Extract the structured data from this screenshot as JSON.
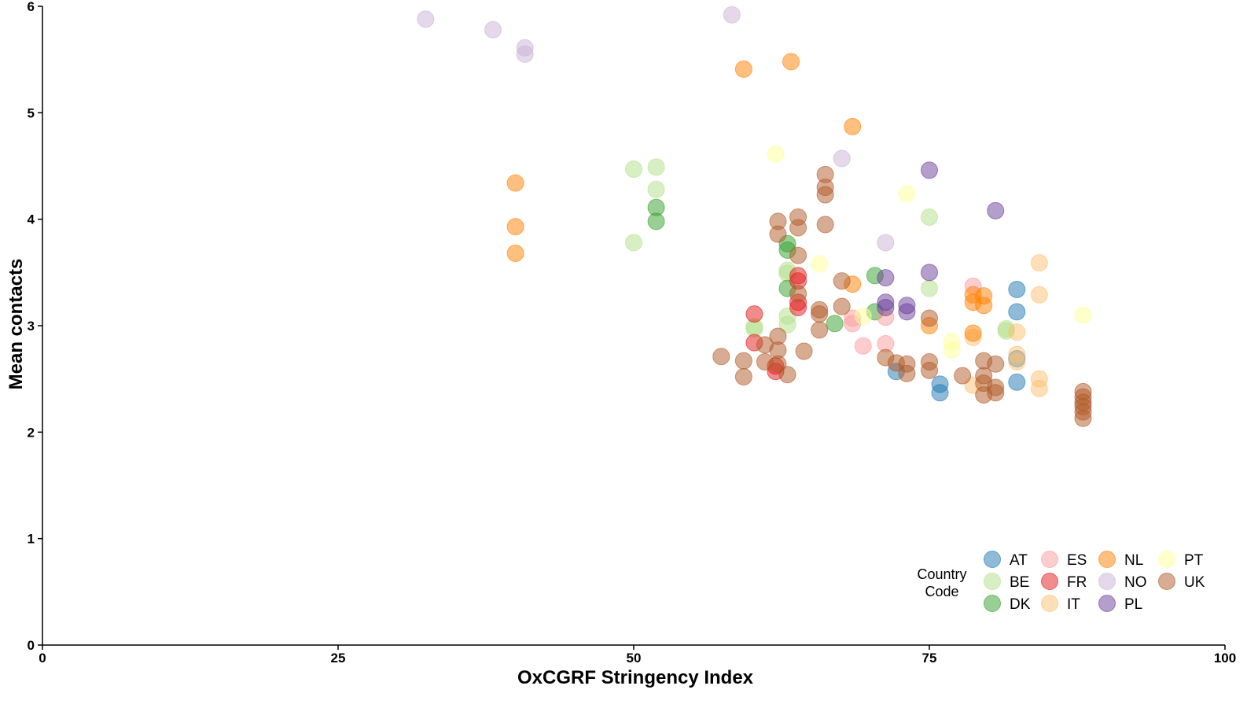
{
  "chart_data": {
    "type": "scatter",
    "title": "",
    "xlabel": "OxCGRF Stringency Index",
    "ylabel": "Mean contacts",
    "xlim": [
      0,
      100
    ],
    "ylim": [
      0,
      6
    ],
    "xticks": [
      0,
      25,
      50,
      75,
      100
    ],
    "yticks": [
      0,
      1,
      2,
      3,
      4,
      5,
      6
    ],
    "grid": false,
    "legend": {
      "title_lines": [
        "Country",
        "Code"
      ],
      "position": "bottom-right",
      "columns": [
        [
          "AT",
          "BE",
          "DK"
        ],
        [
          "ES",
          "FR",
          "IT"
        ],
        [
          "NL",
          "NO",
          "PL"
        ],
        [
          "PT",
          "UK"
        ]
      ]
    },
    "colors": {
      "AT": "#1f78b4",
      "BE": "#b2df8a",
      "DK": "#33a02c",
      "ES": "#fb9a99",
      "FR": "#e31a1c",
      "IT": "#fdbf6f",
      "NL": "#ff7f00",
      "NO": "#cab2d6",
      "PL": "#6a3d9a",
      "PT": "#ffff99",
      "UK": "#b15928"
    },
    "series": [
      {
        "name": "AT",
        "points": [
          [
            82.4,
            3.34
          ],
          [
            82.4,
            3.13
          ],
          [
            82.4,
            2.69
          ],
          [
            82.4,
            2.47
          ],
          [
            75.9,
            2.45
          ],
          [
            75.9,
            2.37
          ],
          [
            72.2,
            2.57
          ]
        ]
      },
      {
        "name": "BE",
        "points": [
          [
            50,
            4.47
          ],
          [
            51.9,
            4.49
          ],
          [
            51.9,
            4.28
          ],
          [
            50,
            3.78
          ],
          [
            63,
            3.52
          ],
          [
            63,
            3.49
          ],
          [
            60.2,
            2.99
          ],
          [
            60.2,
            2.97
          ],
          [
            63,
            3.09
          ],
          [
            63,
            3.01
          ],
          [
            75,
            4.02
          ],
          [
            75,
            3.35
          ],
          [
            81.5,
            2.97
          ],
          [
            81.5,
            2.95
          ]
        ]
      },
      {
        "name": "DK",
        "points": [
          [
            51.9,
            4.11
          ],
          [
            51.9,
            3.98
          ],
          [
            63,
            3.77
          ],
          [
            63,
            3.71
          ],
          [
            63,
            3.35
          ],
          [
            67,
            3.02
          ],
          [
            70.4,
            3.47
          ],
          [
            70.4,
            3.13
          ]
        ]
      },
      {
        "name": "ES",
        "points": [
          [
            68.5,
            3.07
          ],
          [
            68.5,
            3.02
          ],
          [
            69.4,
            2.81
          ],
          [
            71.3,
            2.83
          ],
          [
            71.3,
            3.08
          ],
          [
            78.7,
            3.37
          ]
        ]
      },
      {
        "name": "FR",
        "points": [
          [
            60.2,
            3.11
          ],
          [
            60.2,
            2.84
          ],
          [
            63.9,
            3.47
          ],
          [
            63.9,
            3.42
          ],
          [
            63.9,
            3.22
          ],
          [
            63.9,
            3.17
          ],
          [
            62,
            2.62
          ],
          [
            62,
            2.57
          ]
        ]
      },
      {
        "name": "IT",
        "points": [
          [
            78.7,
            2.89
          ],
          [
            78.7,
            2.44
          ],
          [
            82.4,
            2.94
          ],
          [
            82.4,
            2.73
          ],
          [
            82.4,
            2.66
          ],
          [
            84.3,
            3.59
          ],
          [
            84.3,
            3.29
          ],
          [
            84.3,
            2.5
          ],
          [
            84.3,
            2.41
          ]
        ]
      },
      {
        "name": "NL",
        "points": [
          [
            63.3,
            5.48
          ],
          [
            59.3,
            5.41
          ],
          [
            68.5,
            4.87
          ],
          [
            40,
            4.34
          ],
          [
            40,
            3.93
          ],
          [
            40,
            3.68
          ],
          [
            68.5,
            3.39
          ],
          [
            75,
            3
          ],
          [
            78.7,
            3.29
          ],
          [
            78.7,
            3.22
          ],
          [
            78.7,
            2.93
          ],
          [
            79.6,
            3.28
          ],
          [
            79.6,
            3.19
          ]
        ]
      },
      {
        "name": "NO",
        "points": [
          [
            32.4,
            5.88
          ],
          [
            38.1,
            5.78
          ],
          [
            40.8,
            5.61
          ],
          [
            40.8,
            5.55
          ],
          [
            58.3,
            5.92
          ],
          [
            67.6,
            4.57
          ],
          [
            71.3,
            3.78
          ]
        ]
      },
      {
        "name": "PL",
        "points": [
          [
            75,
            4.46
          ],
          [
            75,
            3.5
          ],
          [
            71.3,
            3.45
          ],
          [
            71.3,
            3.22
          ],
          [
            71.3,
            3.17
          ],
          [
            73.1,
            3.19
          ],
          [
            73.1,
            3.13
          ],
          [
            80.6,
            4.08
          ]
        ]
      },
      {
        "name": "PT",
        "points": [
          [
            62,
            4.61
          ],
          [
            73.1,
            4.24
          ],
          [
            65.7,
            3.58
          ],
          [
            69.4,
            3.09
          ],
          [
            76.9,
            2.85
          ],
          [
            76.9,
            2.77
          ],
          [
            88,
            3.1
          ]
        ]
      },
      {
        "name": "UK",
        "points": [
          [
            57.4,
            2.71
          ],
          [
            59.3,
            2.67
          ],
          [
            59.3,
            2.52
          ],
          [
            61.1,
            2.82
          ],
          [
            61.1,
            2.66
          ],
          [
            62.2,
            3.98
          ],
          [
            62.2,
            3.86
          ],
          [
            62.2,
            2.9
          ],
          [
            62.2,
            2.77
          ],
          [
            62.2,
            2.64
          ],
          [
            63,
            2.54
          ],
          [
            63.9,
            4.02
          ],
          [
            63.9,
            3.92
          ],
          [
            63.9,
            3.66
          ],
          [
            63.9,
            3.3
          ],
          [
            64.4,
            2.76
          ],
          [
            65.7,
            3.15
          ],
          [
            65.7,
            3.11
          ],
          [
            65.7,
            2.96
          ],
          [
            66.2,
            4.42
          ],
          [
            66.2,
            4.3
          ],
          [
            66.2,
            4.23
          ],
          [
            66.2,
            3.95
          ],
          [
            67.6,
            3.42
          ],
          [
            67.6,
            3.18
          ],
          [
            71.3,
            2.7
          ],
          [
            72.2,
            2.65
          ],
          [
            73.1,
            2.64
          ],
          [
            73.1,
            2.55
          ],
          [
            75,
            3.07
          ],
          [
            75,
            2.66
          ],
          [
            75,
            2.58
          ],
          [
            77.8,
            2.53
          ],
          [
            79.6,
            2.67
          ],
          [
            79.6,
            2.53
          ],
          [
            79.6,
            2.46
          ],
          [
            79.6,
            2.35
          ],
          [
            80.6,
            2.64
          ],
          [
            80.6,
            2.42
          ],
          [
            80.6,
            2.37
          ],
          [
            88,
            2.38
          ],
          [
            88,
            2.33
          ],
          [
            88,
            2.28
          ],
          [
            88,
            2.24
          ],
          [
            88,
            2.19
          ],
          [
            88,
            2.13
          ]
        ]
      }
    ]
  }
}
